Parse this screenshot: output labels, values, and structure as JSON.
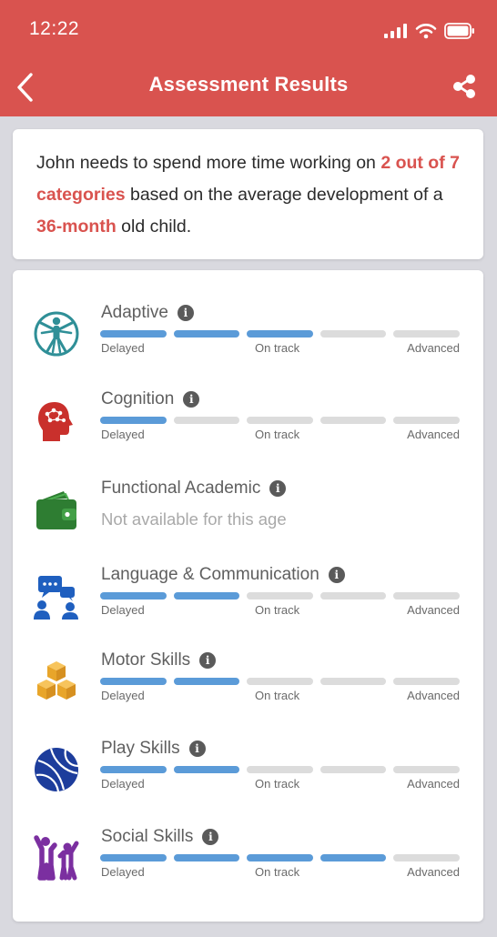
{
  "status": {
    "time": "12:22"
  },
  "header": {
    "title": "Assessment Results"
  },
  "summary": {
    "part1": "John needs to spend more time working on ",
    "highlight1": "2 out of 7 categories",
    "part2": " based on the average development of a ",
    "highlight2": "36-month",
    "part3": " old child."
  },
  "scale_labels": {
    "delayed": "Delayed",
    "on_track": "On track",
    "advanced": "Advanced"
  },
  "categories": [
    {
      "name": "Adaptive",
      "icon": "vitruvian-man-icon",
      "level": 3,
      "total": 5
    },
    {
      "name": "Cognition",
      "icon": "brain-head-icon",
      "level": 1,
      "total": 5
    },
    {
      "name": "Functional Academic",
      "icon": "wallet-icon",
      "status": "Not available for this age"
    },
    {
      "name": "Language & Communication",
      "icon": "speech-bubbles-icon",
      "level": 2,
      "total": 5
    },
    {
      "name": "Motor Skills",
      "icon": "cubes-icon",
      "level": 2,
      "total": 5
    },
    {
      "name": "Play Skills",
      "icon": "ball-icon",
      "level": 2,
      "total": 5
    },
    {
      "name": "Social Skills",
      "icon": "people-icon",
      "level": 4,
      "total": 5
    }
  ],
  "colors": {
    "header": "#d9534f",
    "bar_on": "#5b9bd8",
    "bar_off": "#dcdcdc",
    "highlight": "#d9534f"
  }
}
